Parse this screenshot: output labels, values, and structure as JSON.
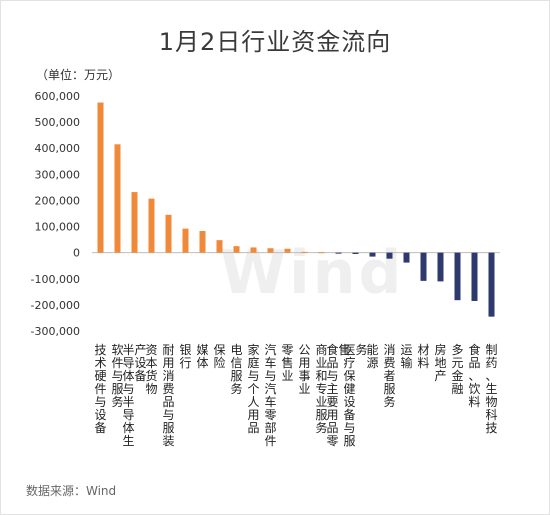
{
  "colors": {
    "positive": "#F08A3A",
    "negative": "#2E3A6E",
    "watermark": "#EFEFEF"
  },
  "watermark_text": "Wind",
  "chart_data": {
    "type": "bar",
    "title": "1月2日行业资金流向",
    "unit_label": "（单位：万元）",
    "source": "数据来源：Wind",
    "ylim": [
      -300000,
      600000
    ],
    "yticks": [
      600000,
      500000,
      400000,
      300000,
      200000,
      100000,
      0,
      -100000,
      -200000,
      -300000
    ],
    "ytick_labels": [
      "600,000",
      "500,000",
      "400,000",
      "300,000",
      "200,000",
      "100,000",
      "0",
      "-100,000",
      "-200,000",
      "-300,000"
    ],
    "categories": [
      "技术硬件与设备",
      "软件与服务",
      "半导体与半导体生产设备",
      "资本货物",
      "耐用消费品与服装",
      "银行",
      "媒体",
      "保险",
      "电信服务",
      "家庭与个人用品",
      "汽车与汽车零部件",
      "零售业",
      "公用事业",
      "商业和专业服务",
      "食品与主要用品零售",
      "医疗保健设备与服务",
      "能源",
      "消费者服务",
      "运输",
      "材料",
      "房地产",
      "多元金融",
      "食品、饮料",
      "制药、生物科技"
    ],
    "values": [
      575000,
      415000,
      232000,
      207000,
      145000,
      92000,
      83000,
      48000,
      25000,
      20000,
      17000,
      15000,
      3000,
      2000,
      -2000,
      -5000,
      -15000,
      -23000,
      -38000,
      -108000,
      -110000,
      -182000,
      -185000,
      -245000
    ]
  }
}
